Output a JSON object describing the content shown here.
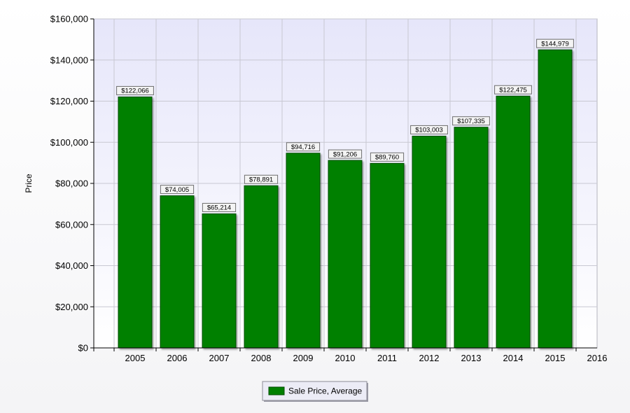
{
  "chart_data": {
    "type": "bar",
    "categories": [
      "2005",
      "2006",
      "2007",
      "2008",
      "2009",
      "2010",
      "2011",
      "2012",
      "2013",
      "2014",
      "2015"
    ],
    "x_ticks": [
      "2005",
      "2006",
      "2007",
      "2008",
      "2009",
      "2010",
      "2011",
      "2012",
      "2013",
      "2014",
      "2015",
      "2016"
    ],
    "series": [
      {
        "name": "Sale Price, Average",
        "values": [
          122066,
          74005,
          65214,
          78891,
          94716,
          91206,
          89760,
          103003,
          107335,
          122475,
          144979
        ],
        "data_labels": [
          "$122,066",
          "$74,005",
          "$65,214",
          "$78,891",
          "$94,716",
          "$91,206",
          "$89,760",
          "$103,003",
          "$107,335",
          "$122,475",
          "$144,979"
        ],
        "color": "#008000"
      }
    ],
    "y_ticks": [
      "$0",
      "$20,000",
      "$40,000",
      "$60,000",
      "$80,000",
      "$100,000",
      "$120,000",
      "$140,000",
      "$160,000"
    ],
    "title": "",
    "xlabel": "",
    "ylabel": "Price",
    "ylim": [
      0,
      160000
    ],
    "grid": true,
    "legend_position": "bottom-center",
    "colors": {
      "bar": "#008000",
      "bar_edge": "#004d00",
      "plot_top": "#e6e6fa",
      "plot_bottom": "#ffffff",
      "grid": "#c8c8d2"
    }
  }
}
